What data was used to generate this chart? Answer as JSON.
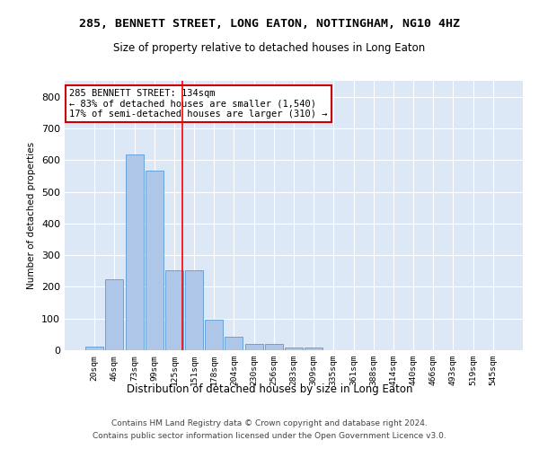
{
  "title": "285, BENNETT STREET, LONG EATON, NOTTINGHAM, NG10 4HZ",
  "subtitle": "Size of property relative to detached houses in Long Eaton",
  "xlabel": "Distribution of detached houses by size in Long Eaton",
  "ylabel": "Number of detached properties",
  "bar_labels": [
    "20sqm",
    "46sqm",
    "73sqm",
    "99sqm",
    "125sqm",
    "151sqm",
    "178sqm",
    "204sqm",
    "230sqm",
    "256sqm",
    "283sqm",
    "309sqm",
    "335sqm",
    "361sqm",
    "388sqm",
    "414sqm",
    "440sqm",
    "466sqm",
    "493sqm",
    "519sqm",
    "545sqm"
  ],
  "bar_values": [
    10,
    225,
    618,
    568,
    252,
    252,
    95,
    42,
    20,
    20,
    8,
    8,
    0,
    0,
    0,
    0,
    0,
    0,
    0,
    0,
    0
  ],
  "bar_color": "#aec6e8",
  "bar_edge_color": "#5b9bd5",
  "background_color": "#dce8f5",
  "grid_color": "#ffffff",
  "red_line_x": 4.42,
  "annotation_text": "285 BENNETT STREET: 134sqm\n← 83% of detached houses are smaller (1,540)\n17% of semi-detached houses are larger (310) →",
  "annotation_box_color": "#ffffff",
  "annotation_box_edge_color": "#cc0000",
  "ylim": [
    0,
    850
  ],
  "yticks": [
    0,
    100,
    200,
    300,
    400,
    500,
    600,
    700,
    800
  ],
  "footnote1": "Contains HM Land Registry data © Crown copyright and database right 2024.",
  "footnote2": "Contains public sector information licensed under the Open Government Licence v3.0."
}
